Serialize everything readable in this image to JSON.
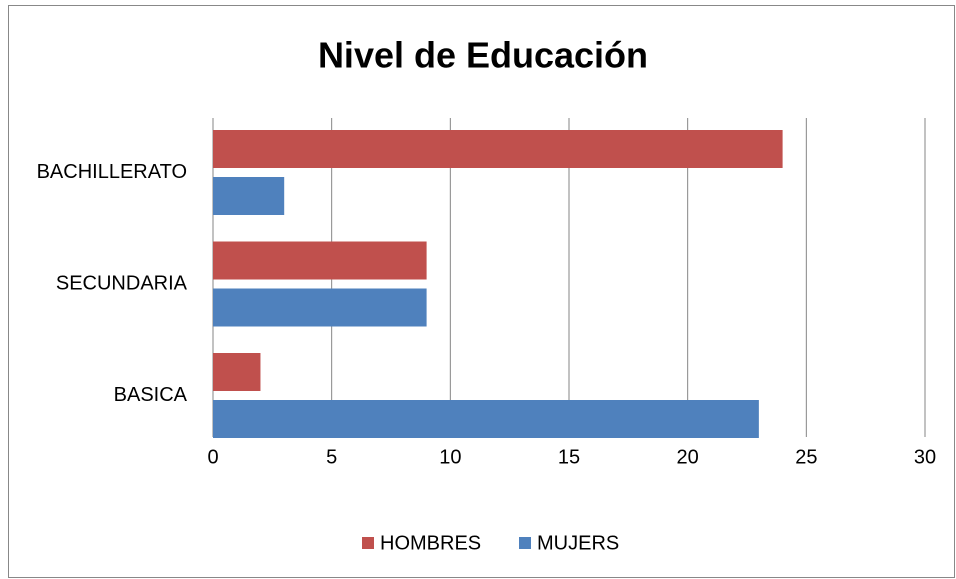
{
  "chart_data": {
    "type": "bar",
    "orientation": "horizontal",
    "title": "Nivel de Educación",
    "categories": [
      "BASICA",
      "SECUNDARIA",
      "BACHILLERATO"
    ],
    "series": [
      {
        "name": "HOMBRES",
        "color": "#c0504d",
        "values": [
          2,
          9,
          24
        ]
      },
      {
        "name": "MUJERS",
        "color": "#4f81bd",
        "values": [
          23,
          9,
          3
        ]
      }
    ],
    "xlim": [
      0,
      30
    ],
    "xticks": [
      0,
      5,
      10,
      15,
      20,
      25,
      30
    ],
    "grid": true,
    "legend": "bottom"
  }
}
